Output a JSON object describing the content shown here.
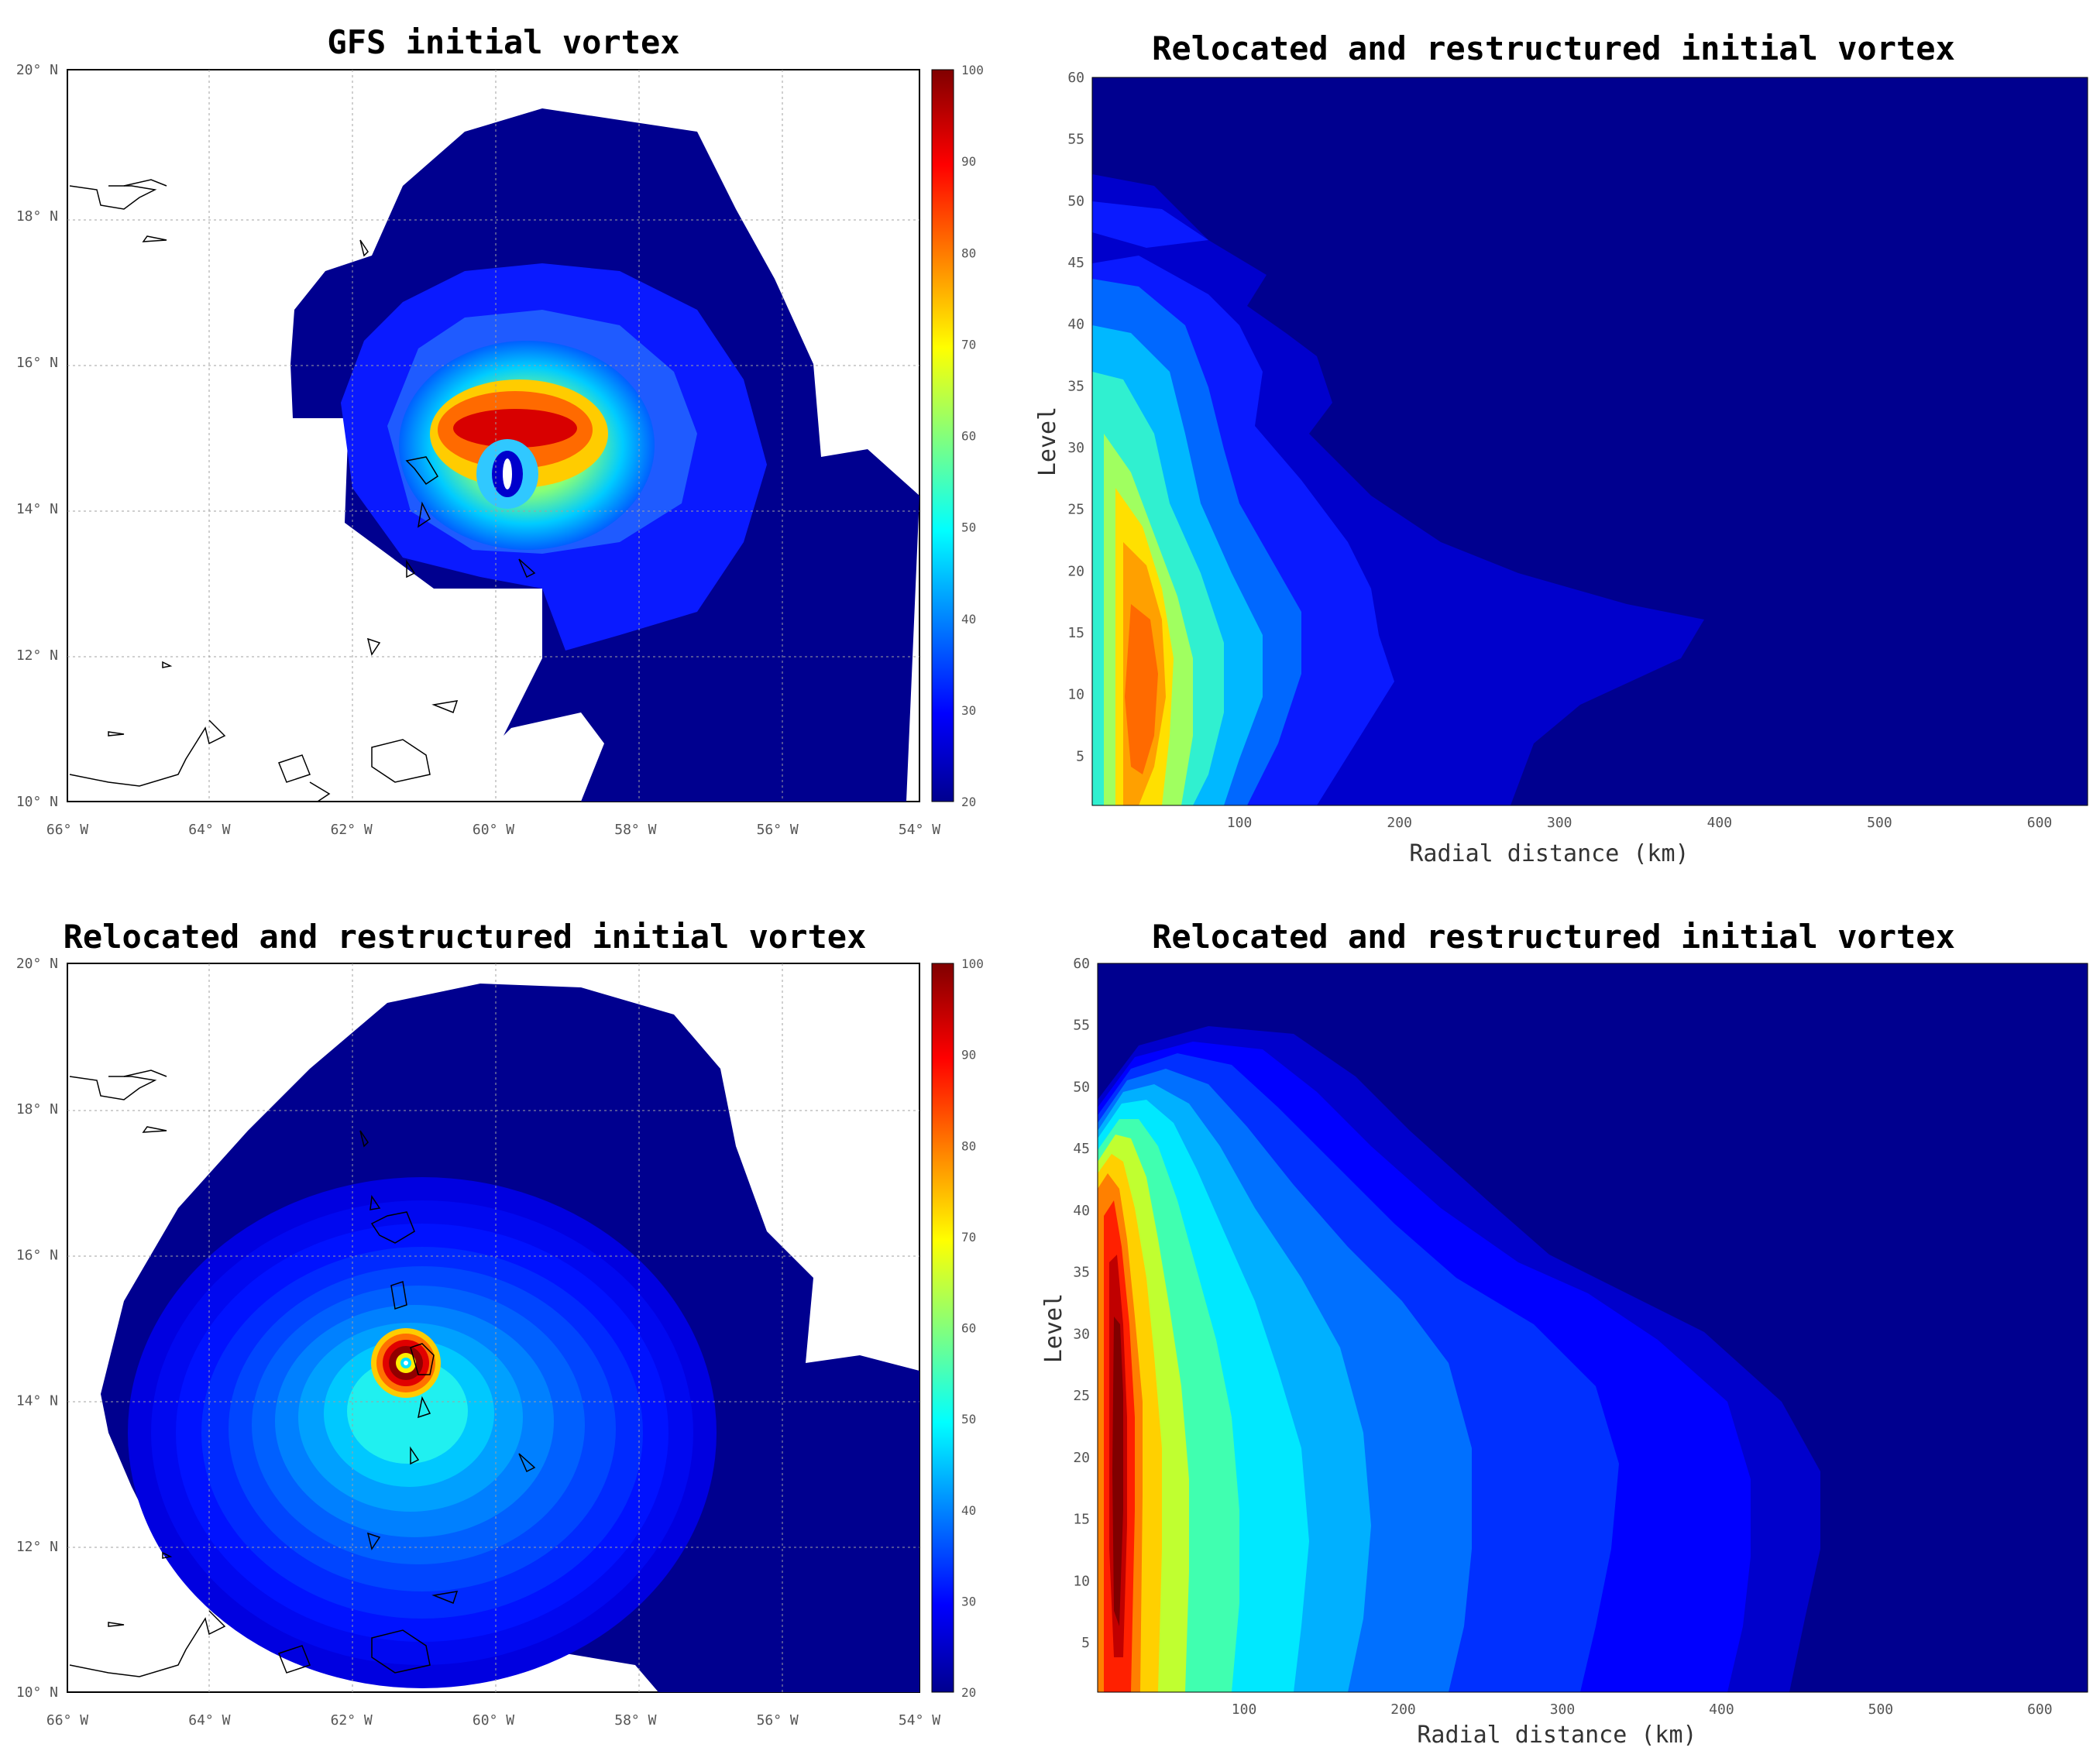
{
  "panels": [
    {
      "title": "GFS initial vortex"
    },
    {
      "title": "Relocated and restructured initial vortex"
    },
    {
      "title": "Relocated and restructured initial vortex"
    },
    {
      "title": "Relocated and restructured initial vortex"
    }
  ],
  "colors": {
    "background_fill": "#00008f",
    "jet_colormap": [
      "#00008f",
      "#0000ff",
      "#00ffff",
      "#ffff00",
      "#ff0000",
      "#800000"
    ]
  },
  "chart_data": [
    {
      "type": "heatmap",
      "title": "GFS initial vortex",
      "xlabel": "",
      "ylabel": "",
      "x_ticks": [
        "66° W",
        "64° W",
        "62° W",
        "60° W",
        "58° W",
        "56° W",
        "54° W"
      ],
      "y_ticks": [
        "10° N",
        "12° N",
        "14° N",
        "16° N",
        "18° N",
        "20° N"
      ],
      "xlim": [
        -66,
        -54
      ],
      "ylim": [
        10,
        20
      ],
      "colorbar": {
        "ticks": [
          "20",
          "30",
          "40",
          "50",
          "60",
          "70",
          "80",
          "90",
          "100"
        ],
        "range": [
          20,
          100
        ]
      },
      "features": {
        "vortex_center": [
          -59.9,
          14.5
        ],
        "max_value": 100,
        "max_location": [
          -59.6,
          15.1
        ]
      }
    },
    {
      "type": "heatmap",
      "title": "Relocated and restructured initial vortex",
      "xlabel": "Radial distance (km)",
      "ylabel": "Level",
      "x_ticks": [
        "100",
        "200",
        "300",
        "400",
        "500",
        "600"
      ],
      "y_ticks": [
        "5",
        "10",
        "15",
        "20",
        "25",
        "30",
        "35",
        "40",
        "45",
        "50",
        "55",
        "60"
      ],
      "xlim": [
        8,
        630
      ],
      "ylim": [
        1,
        60
      ],
      "features": {
        "max_location": [
          60,
          12
        ],
        "outer_extent_km": 390,
        "top_level": 52
      }
    },
    {
      "type": "heatmap",
      "title": "Relocated and restructured initial vortex",
      "xlabel": "",
      "ylabel": "",
      "x_ticks": [
        "66° W",
        "64° W",
        "62° W",
        "60° W",
        "58° W",
        "56° W",
        "54° W"
      ],
      "y_ticks": [
        "10° N",
        "12° N",
        "14° N",
        "16° N",
        "18° N",
        "20° N"
      ],
      "xlim": [
        -66,
        -54
      ],
      "ylim": [
        10,
        20
      ],
      "colorbar": {
        "ticks": [
          "20",
          "30",
          "40",
          "50",
          "60",
          "70",
          "80",
          "90",
          "100"
        ],
        "range": [
          20,
          100
        ]
      },
      "features": {
        "vortex_center": [
          -61.2,
          14.5
        ],
        "max_value": 100
      }
    },
    {
      "type": "heatmap",
      "title": "Relocated and restructured initial vortex",
      "xlabel": "Radial distance (km)",
      "ylabel": "Level",
      "x_ticks": [
        "100",
        "200",
        "300",
        "400",
        "500",
        "600"
      ],
      "y_ticks": [
        "5",
        "10",
        "15",
        "20",
        "25",
        "30",
        "35",
        "40",
        "45",
        "50",
        "55",
        "60"
      ],
      "xlim": [
        8,
        630
      ],
      "ylim": [
        1,
        60
      ],
      "features": {
        "max_location": [
          30,
          17
        ],
        "outer_extent_km": 490,
        "top_level": 52
      }
    }
  ]
}
